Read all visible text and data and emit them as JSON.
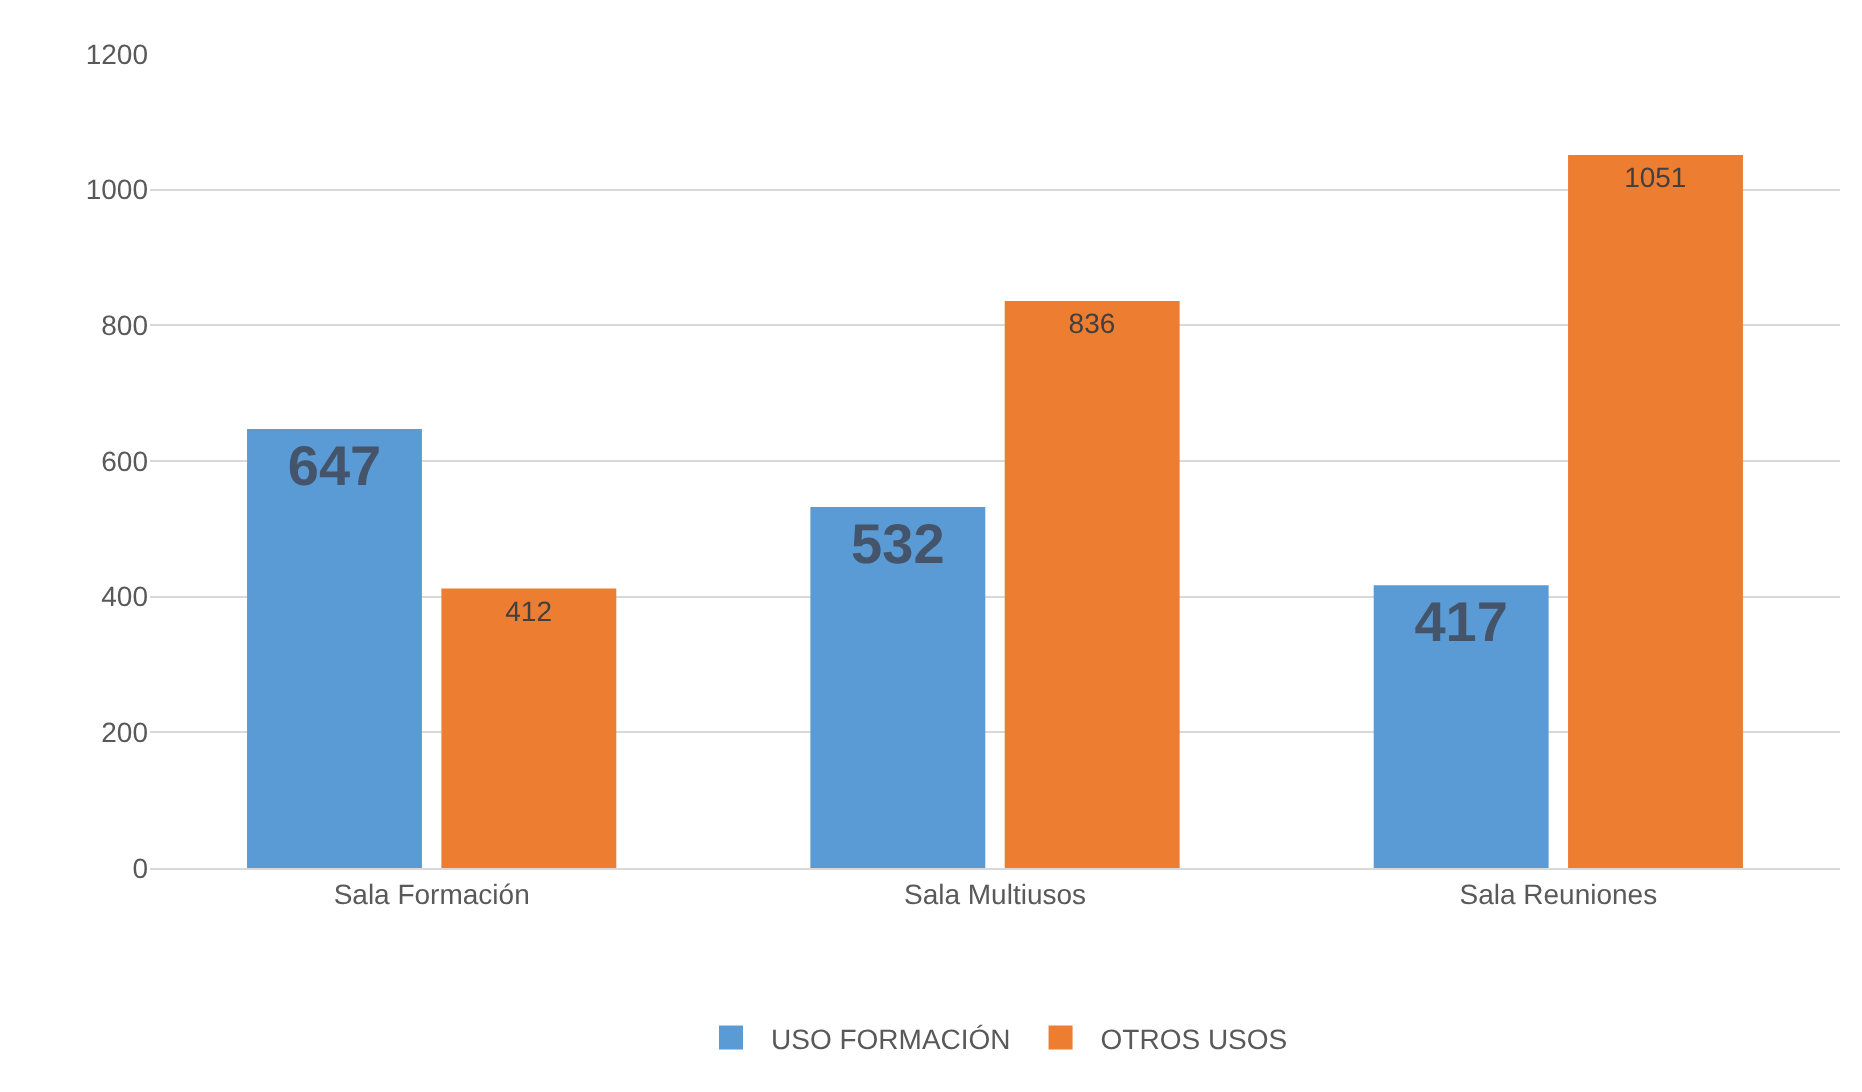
{
  "chart_data": {
    "type": "bar",
    "categories": [
      "Sala Formación",
      "Sala Multiusos",
      "Sala Reuniones"
    ],
    "series": [
      {
        "name": "USO FORMACIÓN",
        "color": "#5b9bd5",
        "values": [
          647,
          532,
          417
        ]
      },
      {
        "name": "OTROS USOS",
        "color": "#ed7d31",
        "values": [
          412,
          836,
          1051
        ]
      }
    ],
    "ylim": [
      0,
      1200
    ],
    "yticks": [
      0,
      200,
      400,
      600,
      800,
      1000,
      1200
    ],
    "grid": "y",
    "legend": "bottom",
    "data_labels": true
  }
}
